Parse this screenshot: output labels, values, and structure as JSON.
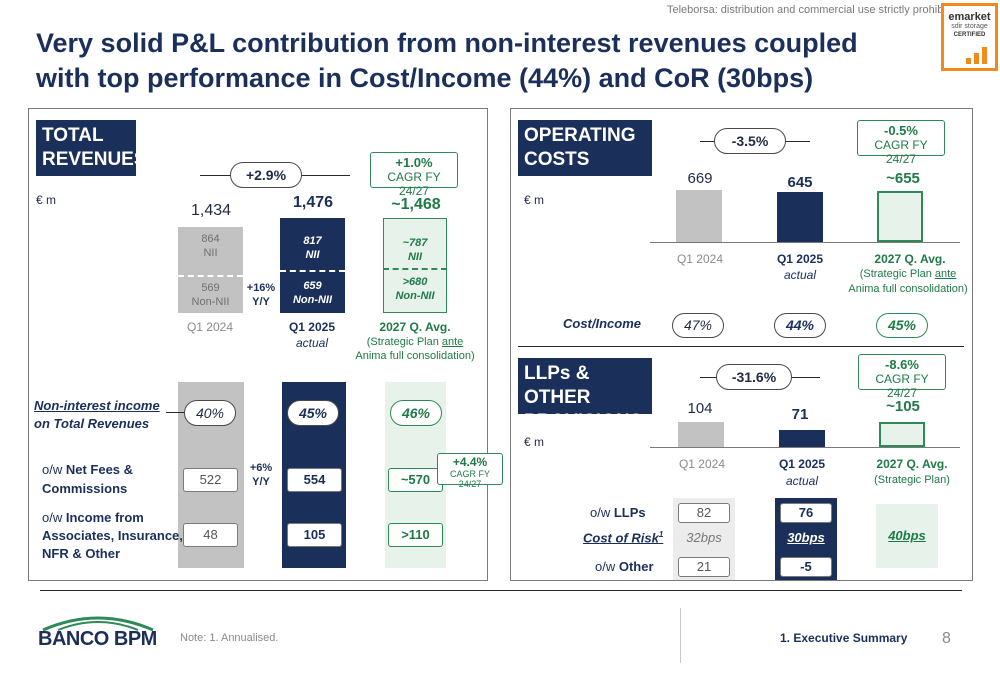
{
  "disclaimer": "Teleborsa: distribution and commercial use strictly prohibited",
  "badge": {
    "brand": "emarket",
    "line2": "sdir storage",
    "line3": "CERTIFIED"
  },
  "title": "Very solid P&L contribution from non-interest revenues coupled with top performance in Cost/Income (44%) and CoR (30bps)",
  "revenues": {
    "header_line1": "TOTAL",
    "header_line2": "REVENUES",
    "unit": "€ m",
    "growth": "+2.9%",
    "cagr_value": "+1.0%",
    "cagr_label": "CAGR FY 24/27",
    "q1_2024": {
      "total": "1,434",
      "nii_value": "864",
      "nii_label": "NII",
      "nonnii_value": "569",
      "nonnii_label": "Non-NII",
      "label": "Q1 2024"
    },
    "q1_2025": {
      "total": "1,476",
      "nii_value": "817",
      "nii_label": "NII",
      "nonnii_value": "659",
      "nonnii_label": "Non-NII",
      "label": "Q1 2025",
      "sublabel": "actual"
    },
    "plan": {
      "total": "~1,468",
      "nii_value": "~787",
      "nii_label": "NII",
      "nonnii_value": ">680",
      "nonnii_label": "Non-NII",
      "label": "2027 Q. Avg.",
      "sublabel1": "(Strategic Plan ",
      "sublabel_u": "ante",
      "sublabel2": "Anima full consolidation)"
    },
    "yy_growth": "+16%",
    "yy_label": "Y/Y",
    "ratio_label_1": "Non-interest income",
    "ratio_label_2": "on Total Revenues",
    "ratio_2024": "40%",
    "ratio_2025": "45%",
    "ratio_plan": "46%",
    "fees_prefix": "o/w ",
    "fees_label_1": "Net Fees &",
    "fees_label_2": "Commissions",
    "fees_2024": "522",
    "fees_2025": "554",
    "fees_plan": "~570",
    "fees_yy": "+6%",
    "fees_yy_label": "Y/Y",
    "fees_cagr_value": "+4.4%",
    "fees_cagr_label": "CAGR FY 24/27",
    "assoc_prefix": "o/w ",
    "assoc_label_1": "Income from",
    "assoc_label_2": "Associates, Insurance,",
    "assoc_label_3": "NFR & Other",
    "assoc_2024": "48",
    "assoc_2025": "105",
    "assoc_plan": ">110"
  },
  "opex": {
    "header_line1": "OPERATING",
    "header_line2": "COSTS",
    "unit": "€ m",
    "growth": "-3.5%",
    "cagr_value": "-0.5%",
    "cagr_label": "CAGR FY 24/27",
    "v2024": "669",
    "v2025": "645",
    "vplan": "~655",
    "values_numeric": [
      669,
      645,
      655
    ],
    "label_2024": "Q1 2024",
    "label_2025": "Q1 2025",
    "sub_2025": "actual",
    "label_plan": "2027 Q. Avg.",
    "sub_plan_1": "(Strategic Plan ",
    "sub_plan_u": "ante",
    "sub_plan_2": "Anima full consolidation)",
    "ci_label": "Cost/Income",
    "ci_2024": "47%",
    "ci_2025": "44%",
    "ci_plan": "45%"
  },
  "llp": {
    "header_line1": "LLPs & OTHER",
    "header_line2": "PROVISIONS",
    "unit": "€ m",
    "growth": "-31.6%",
    "cagr_value": "-8.6%",
    "cagr_label": "CAGR FY 24/27",
    "v2024": "104",
    "v2025": "71",
    "vplan": "~105",
    "values_numeric": [
      104,
      71,
      105
    ],
    "label_2024": "Q1 2024",
    "label_2025": "Q1 2025",
    "sub_2025": "actual",
    "label_plan": "2027 Q. Avg.",
    "sub_plan": "(Strategic Plan)",
    "llps_prefix": "o/w ",
    "llps_label": "LLPs",
    "llps_2024": "82",
    "llps_2025": "76",
    "cor_label": "Cost of Risk",
    "cor_sup": "1",
    "cor_2024": "32bps",
    "cor_2025": "30bps",
    "cor_plan": "40bps",
    "other_prefix": "o/w ",
    "other_label": "Other",
    "other_2024": "21",
    "other_2025": "-5"
  },
  "footer": {
    "logo": "BANCO BPM",
    "note_prefix": "Note: ",
    "note": "1. Annualised.",
    "section": "1. Executive Summary",
    "page": "8"
  },
  "colors": {
    "navy": "#1b2f5b",
    "grey_bar": "#bdbdbd",
    "green": "#1f7a47",
    "light_green": "#e6f2ea",
    "badge_orange": "#f08a1c"
  }
}
